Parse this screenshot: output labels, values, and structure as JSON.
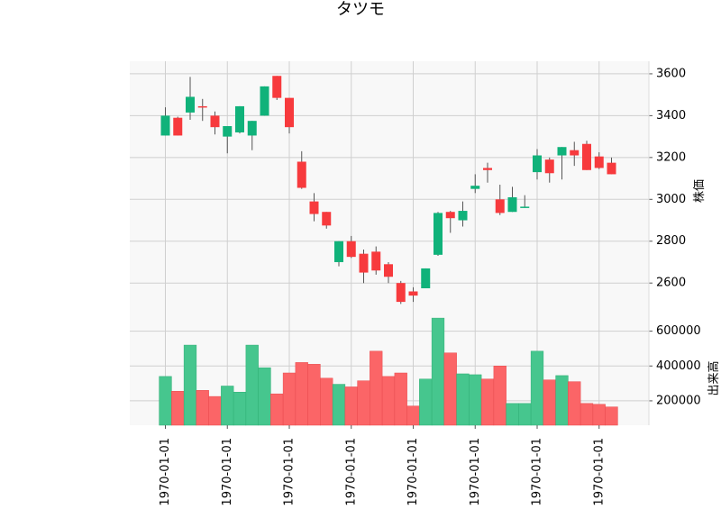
{
  "chart_data": {
    "type": "candlestick",
    "title": "タツモ",
    "price_panel": {
      "ylabel": "株価",
      "ylim": [
        2420,
        3660
      ],
      "yticks": [
        2600,
        2800,
        3000,
        3200,
        3400,
        3600
      ],
      "ytick_labels": [
        "2600",
        "2800",
        "3000",
        "3200",
        "3400",
        "3600"
      ],
      "up_color": "#10b27a",
      "down_color": "#f73a3d",
      "wick_color": "#555555"
    },
    "volume_panel": {
      "ylabel": "出来高",
      "ylim": [
        60000,
        660000
      ],
      "yticks": [
        200000,
        400000,
        600000
      ],
      "ytick_labels": [
        "200000",
        "400000",
        "600000"
      ],
      "up_color": "#46c68e",
      "down_color": "#fb6567"
    },
    "x_tick_labels": [
      "1970-01-01",
      "1970-01-01",
      "1970-01-01",
      "1970-01-01",
      "1970-01-01",
      "1970-01-01",
      "1970-01-01",
      "1970-01-01"
    ],
    "grid": true,
    "background": "#f8f8f8",
    "candles": [
      {
        "open": 3305,
        "high": 3440,
        "low": 3305,
        "close": 3400,
        "volume": 340000
      },
      {
        "open": 3390,
        "high": 3395,
        "low": 3305,
        "close": 3305,
        "volume": 255000
      },
      {
        "open": 3415,
        "high": 3585,
        "low": 3380,
        "close": 3490,
        "volume": 520000
      },
      {
        "open": 3445,
        "high": 3480,
        "low": 3375,
        "close": 3440,
        "volume": 260000
      },
      {
        "open": 3400,
        "high": 3420,
        "low": 3310,
        "close": 3345,
        "volume": 225000
      },
      {
        "open": 3300,
        "high": 3350,
        "low": 3220,
        "close": 3350,
        "volume": 285000
      },
      {
        "open": 3320,
        "high": 3445,
        "low": 3315,
        "close": 3445,
        "volume": 250000
      },
      {
        "open": 3305,
        "high": 3375,
        "low": 3235,
        "close": 3375,
        "volume": 520000
      },
      {
        "open": 3400,
        "high": 3540,
        "low": 3400,
        "close": 3540,
        "volume": 390000
      },
      {
        "open": 3590,
        "high": 3590,
        "low": 3475,
        "close": 3485,
        "volume": 240000
      },
      {
        "open": 3485,
        "high": 3485,
        "low": 3315,
        "close": 3345,
        "volume": 360000
      },
      {
        "open": 3180,
        "high": 3230,
        "low": 3050,
        "close": 3055,
        "volume": 420000
      },
      {
        "open": 2990,
        "high": 3030,
        "low": 2895,
        "close": 2930,
        "volume": 410000
      },
      {
        "open": 2940,
        "high": 2940,
        "low": 2860,
        "close": 2875,
        "volume": 330000
      },
      {
        "open": 2700,
        "high": 2800,
        "low": 2680,
        "close": 2800,
        "volume": 295000
      },
      {
        "open": 2800,
        "high": 2825,
        "low": 2720,
        "close": 2725,
        "volume": 280000
      },
      {
        "open": 2740,
        "high": 2760,
        "low": 2600,
        "close": 2650,
        "volume": 315000
      },
      {
        "open": 2750,
        "high": 2775,
        "low": 2640,
        "close": 2660,
        "volume": 485000
      },
      {
        "open": 2690,
        "high": 2700,
        "low": 2600,
        "close": 2630,
        "volume": 340000
      },
      {
        "open": 2600,
        "high": 2610,
        "low": 2500,
        "close": 2510,
        "volume": 360000
      },
      {
        "open": 2560,
        "high": 2580,
        "low": 2510,
        "close": 2540,
        "volume": 170000
      },
      {
        "open": 2575,
        "high": 2670,
        "low": 2575,
        "close": 2670,
        "volume": 325000
      },
      {
        "open": 2735,
        "high": 2940,
        "low": 2730,
        "close": 2935,
        "volume": 675000
      },
      {
        "open": 2940,
        "high": 2945,
        "low": 2840,
        "close": 2910,
        "volume": 475000
      },
      {
        "open": 2900,
        "high": 2990,
        "low": 2870,
        "close": 2945,
        "volume": 355000
      },
      {
        "open": 3050,
        "high": 3120,
        "low": 3030,
        "close": 3065,
        "volume": 350000
      },
      {
        "open": 3150,
        "high": 3175,
        "low": 3080,
        "close": 3140,
        "volume": 325000
      },
      {
        "open": 3000,
        "high": 3070,
        "low": 2925,
        "close": 2935,
        "volume": 400000
      },
      {
        "open": 2940,
        "high": 3060,
        "low": 2940,
        "close": 3010,
        "volume": 185000
      },
      {
        "open": 2960,
        "high": 3020,
        "low": 2960,
        "close": 2965,
        "volume": 185000
      },
      {
        "open": 3130,
        "high": 3240,
        "low": 3095,
        "close": 3210,
        "volume": 485000
      },
      {
        "open": 3190,
        "high": 3200,
        "low": 3080,
        "close": 3125,
        "volume": 320000
      },
      {
        "open": 3210,
        "high": 3250,
        "low": 3095,
        "close": 3250,
        "volume": 345000
      },
      {
        "open": 3235,
        "high": 3275,
        "low": 3160,
        "close": 3210,
        "volume": 310000
      },
      {
        "open": 3265,
        "high": 3280,
        "low": 3140,
        "close": 3140,
        "volume": 185000
      },
      {
        "open": 3205,
        "high": 3225,
        "low": 3145,
        "close": 3150,
        "volume": 180000
      },
      {
        "open": 3175,
        "high": 3200,
        "low": 3120,
        "close": 3120,
        "volume": 165000
      }
    ]
  }
}
